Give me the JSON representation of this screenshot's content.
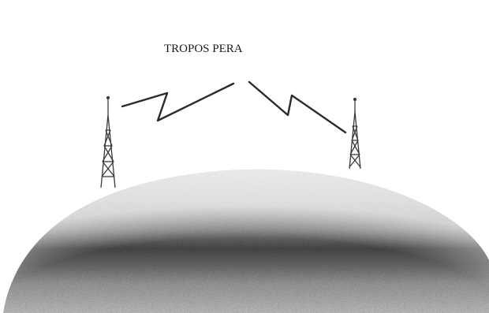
{
  "diagram": {
    "label": "TROPOS PERA"
  }
}
